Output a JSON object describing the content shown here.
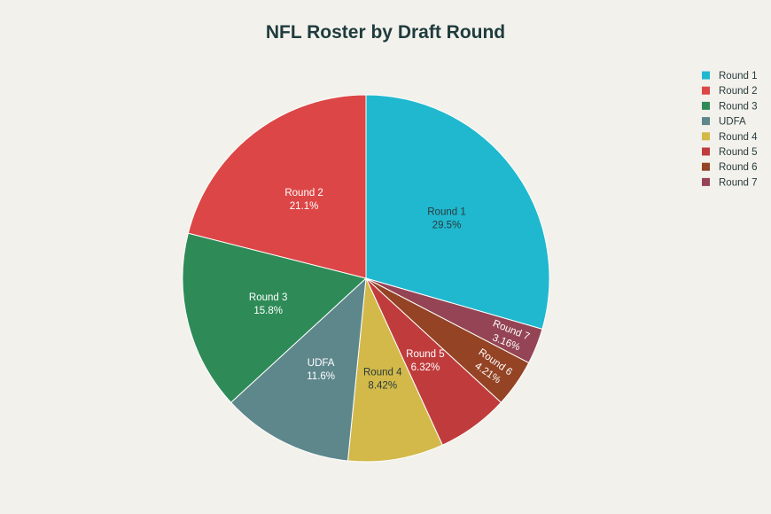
{
  "chart_data": {
    "type": "pie",
    "title": "NFL Roster by Draft Round",
    "legend_position": "top-right",
    "direction": "clockwise",
    "start": "top",
    "slices": [
      {
        "label": "Round 1",
        "percent_label": "29.5%",
        "value": 29.47,
        "color": "#20b8cf",
        "label_color": "#2a3b3c"
      },
      {
        "label": "Round 7",
        "percent_label": "3.16%",
        "value": 3.16,
        "color": "#944454",
        "label_color": "#ffffff"
      },
      {
        "label": "Round 6",
        "percent_label": "4.21%",
        "value": 4.21,
        "color": "#944324",
        "label_color": "#ffffff"
      },
      {
        "label": "Round 5",
        "percent_label": "6.32%",
        "value": 6.32,
        "color": "#c03c3c",
        "label_color": "#ffffff"
      },
      {
        "label": "Round 4",
        "percent_label": "8.42%",
        "value": 8.42,
        "color": "#d2b94a",
        "label_color": "#2a3b3c"
      },
      {
        "label": "UDFA",
        "percent_label": "11.6%",
        "value": 11.58,
        "color": "#5e878c",
        "label_color": "#ffffff"
      },
      {
        "label": "Round 3",
        "percent_label": "15.8%",
        "value": 15.79,
        "color": "#2e8b57",
        "label_color": "#ffffff"
      },
      {
        "label": "Round 2",
        "percent_label": "21.1%",
        "value": 21.05,
        "color": "#dc4646",
        "label_color": "#ffffff"
      }
    ],
    "legend": [
      {
        "label": "Round 1",
        "color": "#20b8cf"
      },
      {
        "label": "Round 2",
        "color": "#dc4646"
      },
      {
        "label": "Round 3",
        "color": "#2e8b57"
      },
      {
        "label": "UDFA",
        "color": "#5e878c"
      },
      {
        "label": "Round 4",
        "color": "#d2b94a"
      },
      {
        "label": "Round 5",
        "color": "#c03c3c"
      },
      {
        "label": "Round 6",
        "color": "#944324"
      },
      {
        "label": "Round 7",
        "color": "#944454"
      }
    ]
  }
}
